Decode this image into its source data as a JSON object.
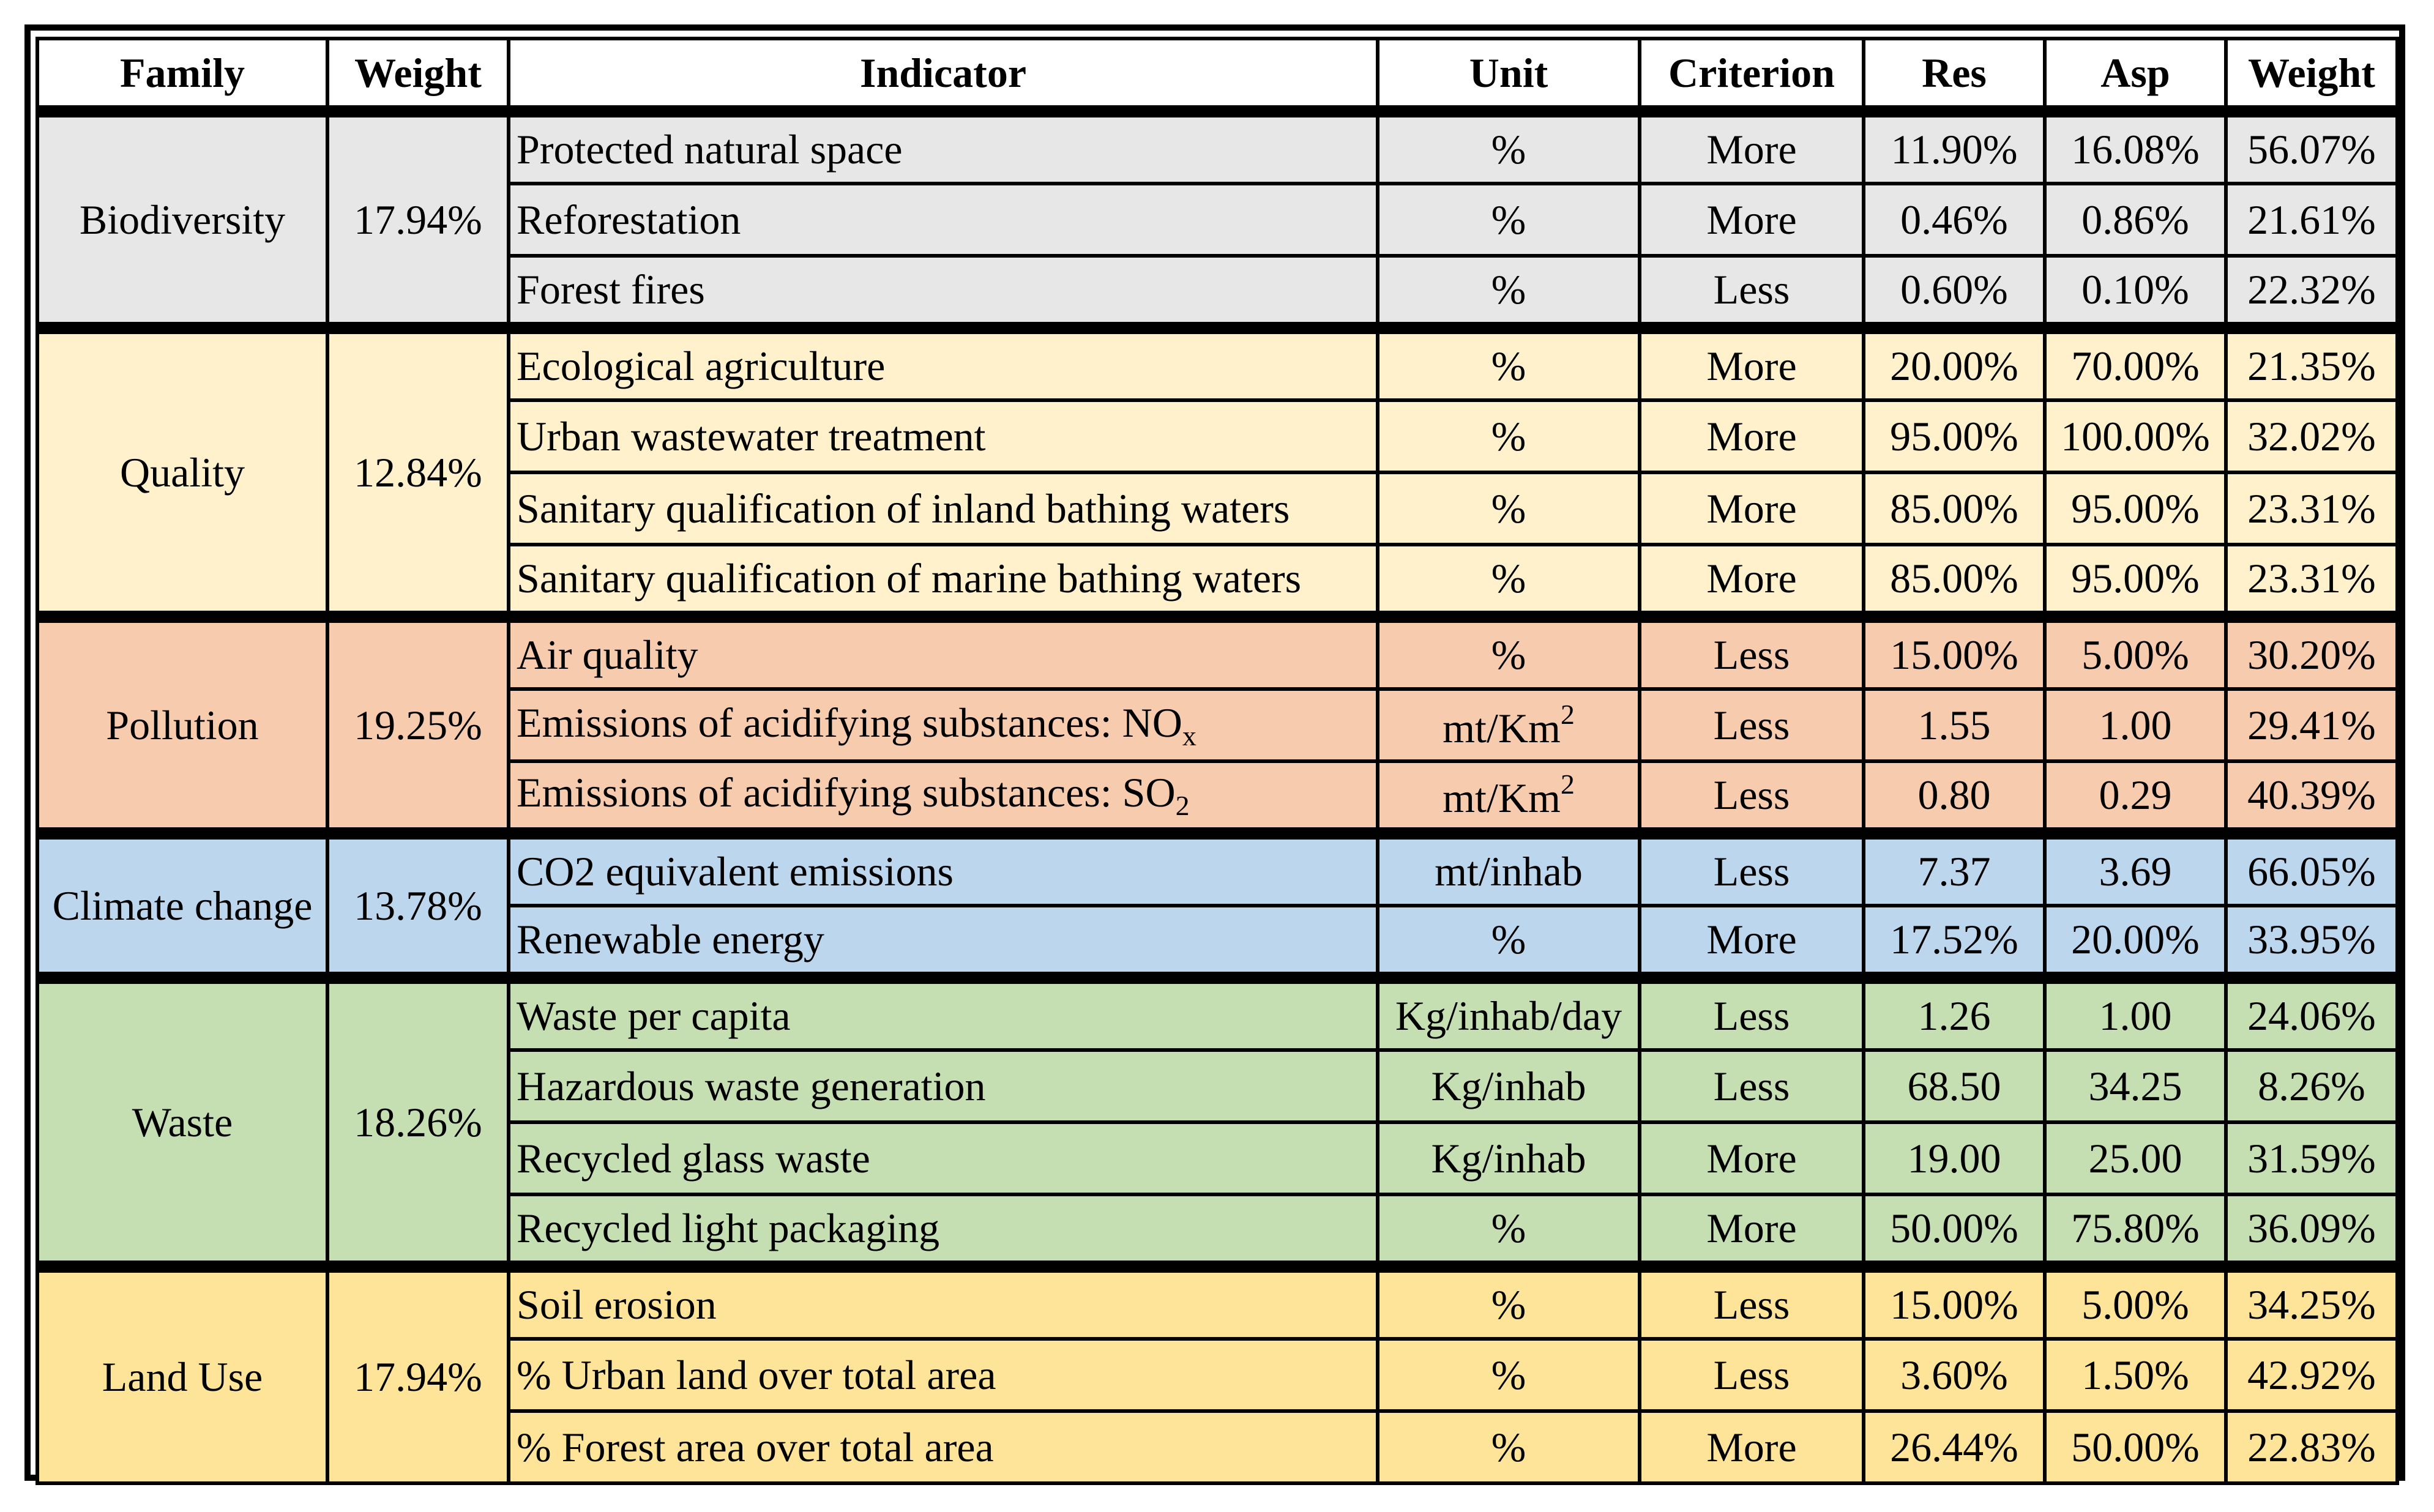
{
  "headers": [
    "Family",
    "Weight",
    "Indicator",
    "Unit",
    "Criterion",
    "Res",
    "Asp",
    "Weight"
  ],
  "colors": {
    "biodiversity": "#e7e7e7",
    "quality": "#fef1cb",
    "pollution": "#f7cbad",
    "climate": "#bcd6ee",
    "waste": "#c5dfb3",
    "land": "#fee498"
  },
  "families": [
    {
      "name": "Biodiversity",
      "weight": "17.94%",
      "rows": [
        {
          "indicator": "Protected natural space",
          "unit": "%",
          "criterion": "More",
          "res": "11.90%",
          "asp": "16.08%",
          "weight": "56.07%"
        },
        {
          "indicator": "Reforestation",
          "unit": "%",
          "criterion": "More",
          "res": "0.46%",
          "asp": "0.86%",
          "weight": "21.61%"
        },
        {
          "indicator": "Forest fires",
          "unit": "%",
          "criterion": "Less",
          "res": "0.60%",
          "asp": "0.10%",
          "weight": "22.32%"
        }
      ]
    },
    {
      "name": "Quality",
      "weight": "12.84%",
      "rows": [
        {
          "indicator": "Ecological agriculture",
          "unit": "%",
          "criterion": "More",
          "res": "20.00%",
          "asp": "70.00%",
          "weight": "21.35%"
        },
        {
          "indicator": "Urban wastewater treatment",
          "unit": "%",
          "criterion": "More",
          "res": "95.00%",
          "asp": "100.00%",
          "weight": "32.02%"
        },
        {
          "indicator": "Sanitary qualification of inland bathing waters",
          "unit": "%",
          "criterion": "More",
          "res": "85.00%",
          "asp": "95.00%",
          "weight": "23.31%"
        },
        {
          "indicator": "Sanitary qualification of marine bathing waters",
          "unit": "%",
          "criterion": "More",
          "res": "85.00%",
          "asp": "95.00%",
          "weight": "23.31%"
        }
      ]
    },
    {
      "name": "Pollution",
      "weight": "19.25%",
      "rows": [
        {
          "indicator": "Air quality",
          "unit": "%",
          "criterion": "Less",
          "res": "15.00%",
          "asp": "5.00%",
          "weight": "30.20%"
        },
        {
          "indicator": "Emissions of acidifying substances: NO",
          "indicator_sub": "x",
          "unit": "mt/Km",
          "unit_sup": "2",
          "criterion": "Less",
          "res": "1.55",
          "asp": "1.00",
          "weight": "29.41%"
        },
        {
          "indicator": "Emissions of acidifying substances: SO",
          "indicator_sub": "2",
          "unit": "mt/Km",
          "unit_sup": "2",
          "criterion": "Less",
          "res": "0.80",
          "asp": "0.29",
          "weight": "40.39%"
        }
      ]
    },
    {
      "name": "Climate change",
      "weight": "13.78%",
      "rows": [
        {
          "indicator": "CO2 equivalent emissions",
          "unit": "mt/inhab",
          "criterion": "Less",
          "res": "7.37",
          "asp": "3.69",
          "weight": "66.05%"
        },
        {
          "indicator": "Renewable energy",
          "unit": "%",
          "criterion": "More",
          "res": "17.52%",
          "asp": "20.00%",
          "weight": "33.95%"
        }
      ]
    },
    {
      "name": "Waste",
      "weight": "18.26%",
      "rows": [
        {
          "indicator": "Waste per capita",
          "unit": "Kg/inhab/day",
          "criterion": "Less",
          "res": "1.26",
          "asp": "1.00",
          "weight": "24.06%"
        },
        {
          "indicator": "Hazardous waste generation",
          "unit": "Kg/inhab",
          "criterion": "Less",
          "res": "68.50",
          "asp": "34.25",
          "weight": "8.26%"
        },
        {
          "indicator": "Recycled glass waste",
          "unit": "Kg/inhab",
          "criterion": "More",
          "res": "19.00",
          "asp": "25.00",
          "weight": "31.59%"
        },
        {
          "indicator": "Recycled light packaging",
          "unit": "%",
          "criterion": "More",
          "res": "50.00%",
          "asp": "75.80%",
          "weight": "36.09%"
        }
      ]
    },
    {
      "name": "Land Use",
      "weight": "17.94%",
      "rows": [
        {
          "indicator": "Soil erosion",
          "unit": "%",
          "criterion": "Less",
          "res": "15.00%",
          "asp": "5.00%",
          "weight": "34.25%"
        },
        {
          "indicator": "% Urban land over total area",
          "unit": "%",
          "criterion": "Less",
          "res": "3.60%",
          "asp": "1.50%",
          "weight": "42.92%"
        },
        {
          "indicator": "% Forest area over total area",
          "unit": "%",
          "criterion": "More",
          "res": "26.44%",
          "asp": "50.00%",
          "weight": "22.83%"
        }
      ]
    }
  ]
}
